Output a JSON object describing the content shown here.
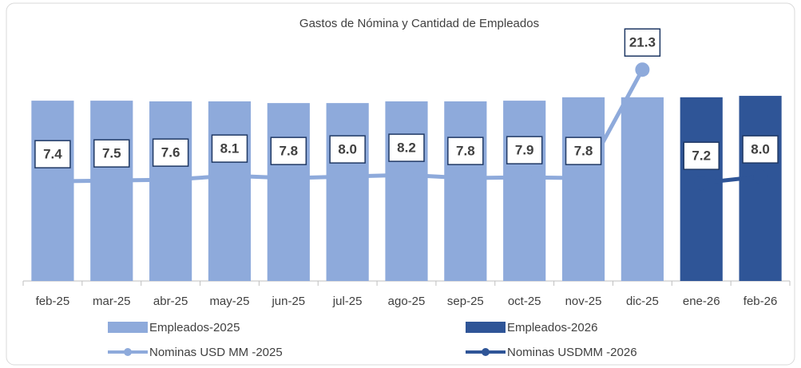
{
  "chart_data": {
    "type": "bar-line",
    "title": "Gastos de Nómina y  Cantidad de Empleados",
    "categories": [
      "feb-25",
      "mar-25",
      "abr-25",
      "may-25",
      "jun-25",
      "jul-25",
      "ago-25",
      "sep-25",
      "oct-25",
      "nov-25",
      "dic-25",
      "ene-26",
      "feb-26"
    ],
    "ylim": [
      0,
      100
    ],
    "y2lim": [
      -5,
      25
    ],
    "series": [
      {
        "name": "Empleados-2025",
        "type": "bar",
        "color": "#8eaadb",
        "values": [
          74.8,
          74.8,
          74.5,
          74.5,
          73.8,
          73.8,
          74.5,
          74.5,
          74.8,
          76.2,
          76.2,
          null,
          null
        ]
      },
      {
        "name": "Empleados-2026",
        "type": "bar",
        "color": "#2f5597",
        "values": [
          null,
          null,
          null,
          null,
          null,
          null,
          null,
          null,
          null,
          null,
          null,
          76.2,
          76.8
        ]
      },
      {
        "name": "Nominas USD MM -2025",
        "type": "line",
        "axis": "y2",
        "color": "#8eaadb",
        "values": [
          7.4,
          7.5,
          7.6,
          8.1,
          7.8,
          8,
          8.2,
          7.8,
          7.9,
          7.8,
          21.3,
          null,
          null
        ],
        "value_labels": [
          "7.4",
          "7.5",
          "7.6",
          "8.1",
          "7.8",
          "8.0",
          "8.2",
          "7.8",
          "7.9",
          "7.8",
          "21.3",
          null,
          null
        ]
      },
      {
        "name": "Nominas USDMM  -2026",
        "type": "line",
        "axis": "y2",
        "color": "#2f5597",
        "values": [
          null,
          null,
          null,
          null,
          null,
          null,
          null,
          null,
          null,
          null,
          null,
          7.2,
          8
        ],
        "value_labels": [
          null,
          null,
          null,
          null,
          null,
          null,
          null,
          null,
          null,
          null,
          null,
          "7.2",
          "8.0"
        ]
      }
    ]
  }
}
